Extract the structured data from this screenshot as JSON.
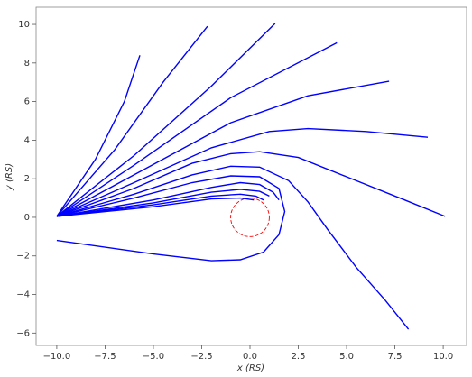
{
  "chart_data": {
    "type": "line",
    "xlabel": "x (RS)",
    "ylabel": "y (RS)",
    "xlim": [
      -11.07,
      11.21
    ],
    "ylim": [
      -6.64,
      10.89
    ],
    "xticks": [
      {
        "value": -10,
        "label": "−10.0"
      },
      {
        "value": -7.5,
        "label": "−7.5"
      },
      {
        "value": -5,
        "label": "−5.0"
      },
      {
        "value": -2.5,
        "label": "−2.5"
      },
      {
        "value": 0,
        "label": "0.0"
      },
      {
        "value": 2.5,
        "label": "2.5"
      },
      {
        "value": 5,
        "label": "5.0"
      },
      {
        "value": 7.5,
        "label": "7.5"
      },
      {
        "value": 10,
        "label": "10.0"
      }
    ],
    "yticks": [
      {
        "value": -6,
        "label": "−6"
      },
      {
        "value": -4,
        "label": "−4"
      },
      {
        "value": -2,
        "label": "−2"
      },
      0,
      2,
      4,
      6,
      8,
      10
    ],
    "circle": {
      "center": [
        0,
        0
      ],
      "radius": 1,
      "color": "#ff0000"
    },
    "series": [
      {
        "color": "#0000ff",
        "x": [
          -10,
          -8,
          -6.5,
          -5.7
        ],
        "values": [
          0.05,
          3,
          6,
          8.4
        ]
      },
      {
        "color": "#0000ff",
        "x": [
          -10,
          -7,
          -4.5,
          -2.2
        ],
        "values": [
          0.05,
          3.5,
          7,
          9.9
        ]
      },
      {
        "color": "#0000ff",
        "x": [
          -10,
          -6,
          -2,
          1.3
        ],
        "values": [
          0.05,
          3.2,
          6.8,
          10.05
        ]
      },
      {
        "color": "#0000ff",
        "x": [
          -10,
          -6,
          -1,
          4.5
        ],
        "values": [
          0.05,
          2.7,
          6.2,
          9.05
        ]
      },
      {
        "color": "#0000ff",
        "x": [
          -10,
          -6,
          -1,
          3,
          7.2
        ],
        "values": [
          0.05,
          2.2,
          4.9,
          6.3,
          7.05
        ]
      },
      {
        "color": "#0000ff",
        "x": [
          -10,
          -6,
          -2,
          1,
          3,
          6,
          9.2
        ],
        "values": [
          0.05,
          1.8,
          3.6,
          4.45,
          4.6,
          4.45,
          4.15
        ]
      },
      {
        "color": "#0000ff",
        "x": [
          -10,
          -6,
          -3,
          -1,
          0.5,
          2.5,
          5,
          8,
          10.1
        ],
        "values": [
          0.05,
          1.5,
          2.8,
          3.3,
          3.4,
          3.1,
          2.1,
          0.9,
          0.05
        ]
      },
      {
        "color": "#0000ff",
        "x": [
          -10,
          -6,
          -3,
          -1,
          0.5,
          2,
          3,
          4,
          5.5,
          7,
          8.2
        ],
        "values": [
          0.05,
          1.2,
          2.2,
          2.65,
          2.6,
          1.9,
          0.8,
          -0.6,
          -2.6,
          -4.3,
          -5.8
        ]
      },
      {
        "color": "#0000ff",
        "x": [
          -10,
          -6,
          -3,
          -1,
          0.5,
          1.5,
          1.8,
          1.5,
          0.7,
          -0.5,
          -2,
          -5,
          -10
        ],
        "values": [
          0.05,
          1,
          1.8,
          2.15,
          2.1,
          1.5,
          0.3,
          -0.9,
          -1.8,
          -2.2,
          -2.25,
          -1.9,
          -1.2
        ]
      },
      {
        "color": "#0000ff",
        "x": [
          -10,
          -5,
          -2,
          -0.5,
          0.5,
          1.2,
          1.5
        ],
        "values": [
          0.05,
          0.9,
          1.55,
          1.8,
          1.7,
          1.3,
          0.9
        ]
      },
      {
        "color": "#0000ff",
        "x": [
          -10,
          -5,
          -2,
          -0.5,
          0.5,
          1
        ],
        "values": [
          0.05,
          0.75,
          1.3,
          1.45,
          1.35,
          1.1
        ]
      },
      {
        "color": "#0000ff",
        "x": [
          -10,
          -5,
          -2,
          -0.5,
          0.3,
          0.7
        ],
        "values": [
          0.05,
          0.65,
          1.1,
          1.2,
          1.1,
          0.9
        ]
      },
      {
        "color": "#0000ff",
        "x": [
          -10,
          -5,
          -2,
          -0.5,
          0.2
        ],
        "values": [
          0.05,
          0.55,
          0.95,
          1,
          0.9
        ]
      }
    ]
  }
}
